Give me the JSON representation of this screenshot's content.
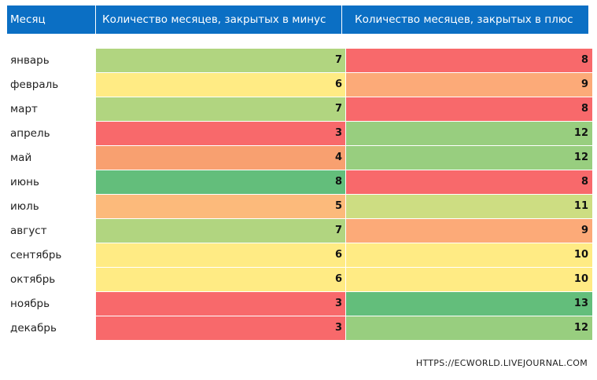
{
  "header": {
    "month": "Месяц",
    "minus": "Количество месяцев, закрытых в минус",
    "plus": "Количество месяцев, закрытых в плюс"
  },
  "chart_data": {
    "type": "table",
    "columns": [
      "Месяц",
      "Количество месяцев, закрытых в минус",
      "Количество месяцев, закрытых в плюс"
    ],
    "categories": [
      "январь",
      "февраль",
      "март",
      "апрель",
      "май",
      "июнь",
      "июль",
      "август",
      "сентябрь",
      "октябрь",
      "ноябрь",
      "декабрь"
    ],
    "series": [
      {
        "name": "Количество месяцев, закрытых в минус",
        "values": [
          7,
          6,
          7,
          3,
          4,
          8,
          5,
          7,
          6,
          6,
          3,
          3
        ]
      },
      {
        "name": "Количество месяцев, закрытых в плюс",
        "values": [
          8,
          9,
          8,
          12,
          12,
          8,
          11,
          9,
          10,
          10,
          13,
          12
        ]
      }
    ],
    "color_scale": {
      "minus": {
        "3": "#f8696b",
        "4": "#f8a070",
        "5": "#fcba7b",
        "6": "#ffeb84",
        "7": "#b1d580",
        "8": "#63be7b"
      },
      "plus": {
        "8": "#f8696b",
        "9": "#fcaa78",
        "10": "#ffeb84",
        "11": "#cddd82",
        "12": "#98ce7f",
        "13": "#63be7b"
      }
    }
  },
  "source": "HTTPS://ECWORLD.LIVEJOURNAL.COM"
}
